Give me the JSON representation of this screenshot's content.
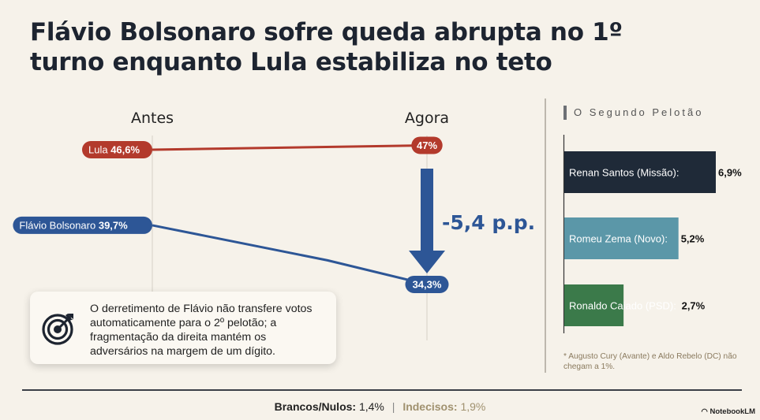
{
  "title": "Flávio Bolsonaro sofre queda abrupta no 1º turno enquanto Lula estabiliza no teto",
  "chart_data": [
    {
      "type": "line",
      "categories": [
        "Antes",
        "Agora"
      ],
      "series": [
        {
          "name": "Lula",
          "values": [
            46.6,
            47.0
          ],
          "labels": [
            "46,6%",
            "47%"
          ],
          "color": "#b33a2c"
        },
        {
          "name": "Flávio Bolsonaro",
          "values": [
            39.7,
            34.3
          ],
          "labels": [
            "39,7%",
            "34,3%"
          ],
          "color": "#2d5696"
        }
      ],
      "annotation": "-5,4 p.p.",
      "annotation_color": "#2d5696"
    },
    {
      "type": "bar",
      "orientation": "horizontal",
      "title": "O Segundo Pelotão",
      "categories": [
        "Renan Santos (Missão):",
        "Romeu Zema (Novo):",
        "Ronaldo Caiado (PSD):"
      ],
      "values": [
        6.9,
        5.2,
        2.7
      ],
      "value_labels": [
        "6,9%",
        "5,2%",
        "2,7%"
      ],
      "colors": [
        "#1f2a38",
        "#5b97a8",
        "#3b7a4a"
      ]
    }
  ],
  "callout": {
    "text": "O derretimento de Flávio não transfere votos automaticamente para o 2º pelotão; a fragmentação da direita mantém os adversários na margem de um dígito.",
    "icon": "target-icon"
  },
  "footnote": "* Augusto Cury (Avante) e Aldo Rebelo (DC) não chegam a 1%.",
  "footer": {
    "brancos_label": "Brancos/Nulos:",
    "brancos_value": "1,4%",
    "indecisos_label": "Indecisos:",
    "indecisos_value": "1,9%"
  },
  "brand": "NotebookLM"
}
